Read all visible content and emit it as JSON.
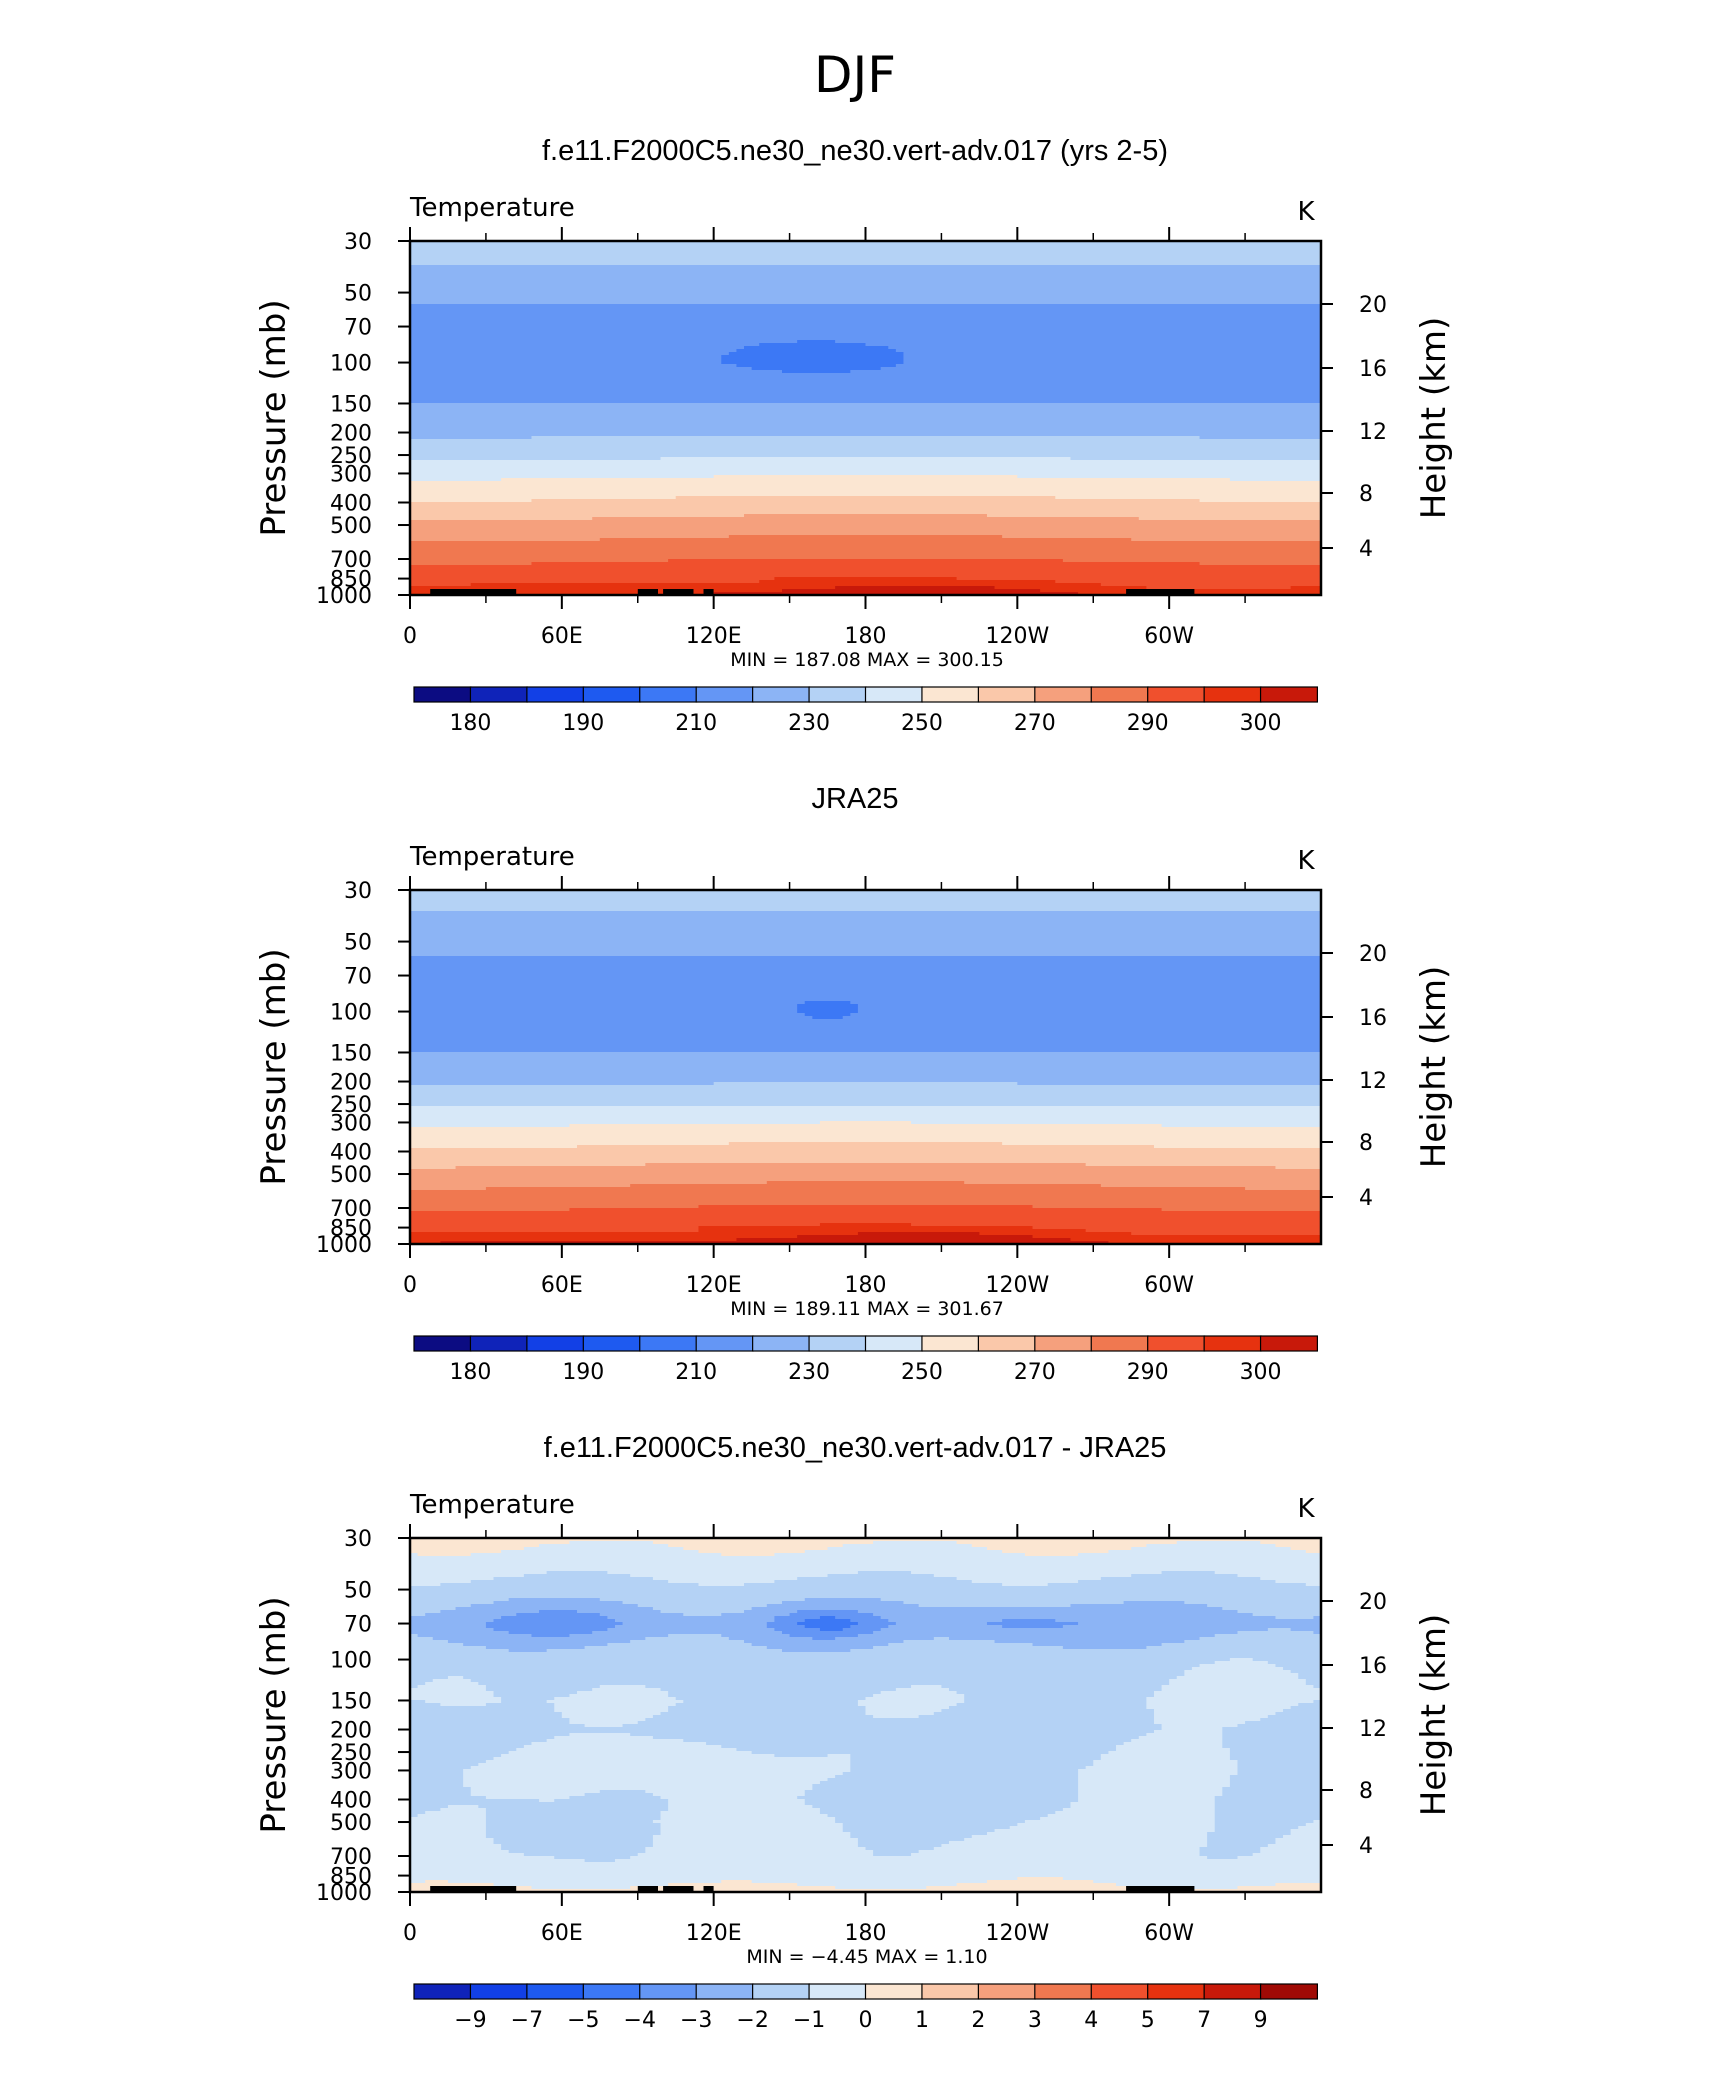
{
  "figure_title": "DJF",
  "chart_data": [
    {
      "type": "heatmap",
      "title": "f.e11.F2000C5.ne30_ne30.vert-adv.017 (yrs 2-5)",
      "left_label": "Temperature",
      "units": "K",
      "ylabel": "Pressure  (mb)",
      "ylabel_right": "Height  (km)",
      "x_ticks": [
        "0",
        "60E",
        "120E",
        "180",
        "120W",
        "60W"
      ],
      "y_ticks": [
        "30",
        "50",
        "70",
        "100",
        "150",
        "200",
        "250",
        "300",
        "400",
        "500",
        "700",
        "850",
        "1000"
      ],
      "height_ticks": [
        "20",
        "16",
        "12",
        "8",
        "4"
      ],
      "stats": "MIN =  187.08   MAX =  300.15",
      "colorbar_labels": [
        "180",
        "190",
        "210",
        "230",
        "250",
        "270",
        "290",
        "300"
      ],
      "levels": [
        175,
        180,
        185,
        190,
        200,
        210,
        220,
        230,
        240,
        250,
        260,
        270,
        280,
        290,
        295,
        300
      ],
      "profile_pressure_mb": [
        30,
        50,
        70,
        100,
        150,
        200,
        250,
        300,
        400,
        500,
        700,
        850,
        1000
      ],
      "profile_temperature_K": [
        226,
        213,
        205,
        203,
        210,
        218,
        228,
        238,
        252,
        264,
        279,
        288,
        296
      ],
      "cold_tropopause": {
        "center_lon": 160,
        "half_width_lon": 45,
        "pressure_mb": 95,
        "value_K": 197
      },
      "topography": true
    },
    {
      "type": "heatmap",
      "title": "JRA25",
      "left_label": "Temperature",
      "units": "K",
      "ylabel": "Pressure  (mb)",
      "ylabel_right": "Height  (km)",
      "x_ticks": [
        "0",
        "60E",
        "120E",
        "180",
        "120W",
        "60W"
      ],
      "y_ticks": [
        "30",
        "50",
        "70",
        "100",
        "150",
        "200",
        "250",
        "300",
        "400",
        "500",
        "700",
        "850",
        "1000"
      ],
      "height_ticks": [
        "20",
        "16",
        "12",
        "8",
        "4"
      ],
      "stats": "MIN =  189.11   MAX =  301.67",
      "colorbar_labels": [
        "180",
        "190",
        "210",
        "230",
        "250",
        "270",
        "290",
        "300"
      ],
      "levels": [
        175,
        180,
        185,
        190,
        200,
        210,
        220,
        230,
        240,
        250,
        260,
        270,
        280,
        290,
        295,
        300
      ],
      "profile_pressure_mb": [
        30,
        50,
        70,
        100,
        150,
        200,
        250,
        300,
        400,
        500,
        700,
        850,
        1000
      ],
      "profile_temperature_K": [
        225,
        213,
        206,
        205,
        210,
        219,
        229,
        239,
        253,
        265,
        280,
        289,
        297
      ],
      "cold_tropopause": {
        "center_lon": 165,
        "half_width_lon": 30,
        "pressure_mb": 98,
        "value_K": 199
      },
      "topography": false
    },
    {
      "type": "heatmap",
      "title": "f.e11.F2000C5.ne30_ne30.vert-adv.017 - JRA25",
      "left_label": "Temperature",
      "units": "K",
      "ylabel": "Pressure  (mb)",
      "ylabel_right": "Height  (km)",
      "x_ticks": [
        "0",
        "60E",
        "120E",
        "180",
        "120W",
        "60W"
      ],
      "y_ticks": [
        "30",
        "50",
        "70",
        "100",
        "150",
        "200",
        "250",
        "300",
        "400",
        "500",
        "700",
        "850",
        "1000"
      ],
      "height_ticks": [
        "20",
        "16",
        "12",
        "8",
        "4"
      ],
      "stats": "MIN =   −4.45   MAX =     1.10",
      "colorbar_labels": [
        "−9",
        "−7",
        "−5",
        "−4",
        "−3",
        "−2",
        "−1",
        "0",
        "1",
        "2",
        "3",
        "4",
        "5",
        "7",
        "9"
      ],
      "levels": [
        -9,
        -7,
        -5,
        -4,
        -3,
        -2,
        -1,
        0,
        1,
        2,
        3,
        4,
        5,
        7,
        9
      ],
      "profile_pressure_mb": [
        30,
        40,
        50,
        70,
        100,
        150,
        200,
        300,
        400,
        500,
        700,
        850,
        1000
      ],
      "profile_temperature_K": [
        0.3,
        -0.6,
        -1.4,
        -2.4,
        -1.5,
        -1.1,
        -1.3,
        -1.0,
        -1.1,
        -0.9,
        -0.8,
        -0.6,
        0.4
      ],
      "topography": true
    }
  ]
}
